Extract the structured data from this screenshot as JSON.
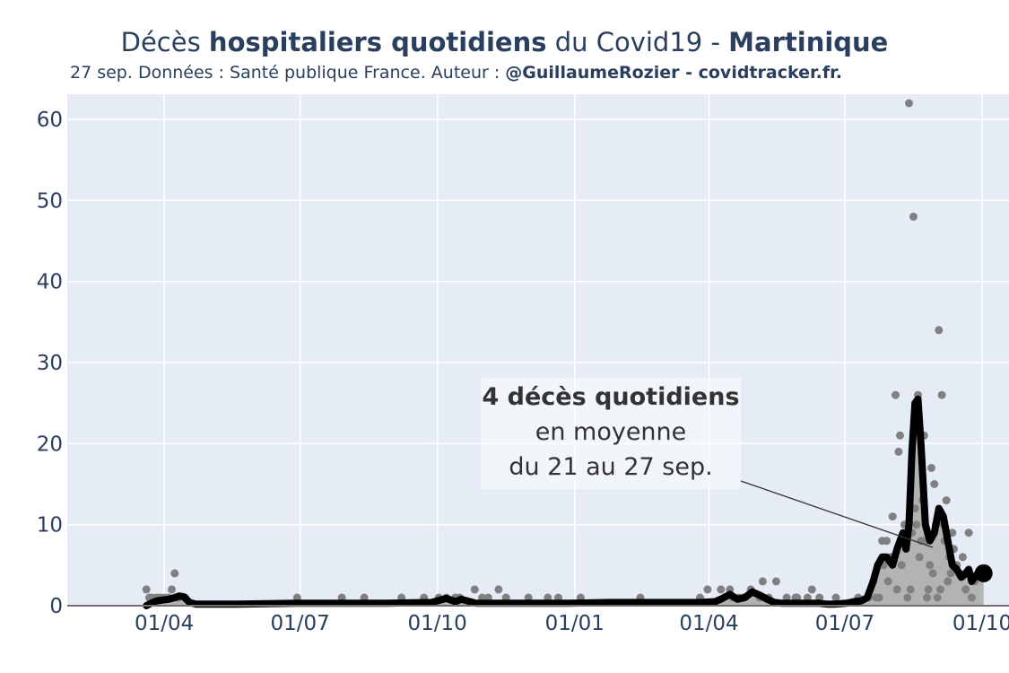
{
  "title": {
    "part1": "Décès ",
    "part2": "hospitaliers quotidiens",
    "part3": " du Covid19 - ",
    "part4": "Martinique"
  },
  "subtitle": {
    "plain": "27 sep. Données : Santé publique France. Auteur : ",
    "bold": "@GuillaumeRozier - covidtracker.fr."
  },
  "annotation": {
    "line1": "4 décès quotidiens",
    "line2": "en moyenne",
    "line3": "du 21 au 27 sep."
  },
  "colors": {
    "plot_bg": "#e5ecf6",
    "grid": "#ffffff",
    "line": "#000000",
    "points": "#808080",
    "fill": "#a9a9a9",
    "axis_text": "#2a3f5f"
  },
  "chart_data": {
    "type": "line",
    "title": "Décès hospitaliers quotidiens du Covid19 - Martinique",
    "x_ticks": [
      "01/04",
      "01/07",
      "01/10",
      "01/01",
      "01/04",
      "01/07",
      "01/10"
    ],
    "y_ticks": [
      0,
      10,
      20,
      30,
      40,
      50,
      60
    ],
    "ylim": [
      0,
      62
    ],
    "x_range_days": [
      -34,
      597
    ],
    "x_note": "days since 2020-03-01",
    "grid": true,
    "series": [
      {
        "kind": "moving_average_7d",
        "x": [
          19,
          22,
          26,
          30,
          34,
          38,
          41,
          44,
          48,
          52,
          60,
          80,
          120,
          150,
          180,
          210,
          220,
          226,
          230,
          240,
          260,
          300,
          330,
          360,
          390,
          400,
          405,
          410,
          415,
          420,
          425,
          430,
          435,
          440,
          445,
          450,
          455,
          460,
          465,
          470,
          475,
          480,
          488,
          493,
          498,
          502,
          506,
          509,
          512,
          515,
          519,
          522,
          524,
          526,
          528,
          530,
          532,
          534,
          536,
          538,
          541,
          544,
          547,
          550,
          553,
          556,
          559,
          562,
          565,
          568,
          570,
          572,
          574,
          576,
          578,
          580
        ],
        "values": [
          0.0,
          0.3,
          0.6,
          0.7,
          0.8,
          1.0,
          1.2,
          1.1,
          0.4,
          0.2,
          0.2,
          0.2,
          0.3,
          0.3,
          0.3,
          0.4,
          0.9,
          0.5,
          0.8,
          0.3,
          0.3,
          0.3,
          0.4,
          0.4,
          0.4,
          0.5,
          0.9,
          1.4,
          0.8,
          1.0,
          1.7,
          1.3,
          0.8,
          0.4,
          0.3,
          0.3,
          0.3,
          0.3,
          0.3,
          0.3,
          0.2,
          0.2,
          0.3,
          0.5,
          0.6,
          1.0,
          3.0,
          5.0,
          6.0,
          6.0,
          5.0,
          7.0,
          8.0,
          9.0,
          7.0,
          10.0,
          19.0,
          25.0,
          25.5,
          20.0,
          10.0,
          8.0,
          9.0,
          12.0,
          11.0,
          8.0,
          5.0,
          4.5,
          3.5,
          4.0,
          4.5,
          3.0,
          3.5,
          4.0,
          4.0,
          4.0
        ]
      },
      {
        "kind": "daily_points",
        "x": [
          19,
          21,
          23,
          26,
          28,
          31,
          34,
          36,
          38,
          40,
          45,
          120,
          150,
          165,
          190,
          205,
          215,
          220,
          226,
          229,
          239,
          244,
          248,
          255,
          260,
          275,
          288,
          295,
          310,
          350,
          390,
          395,
          404,
          410,
          412,
          416,
          419,
          424,
          430,
          432,
          436,
          441,
          448,
          454,
          455,
          462,
          465,
          470,
          481,
          496,
          503,
          506,
          508,
          510,
          512,
          513,
          515,
          516,
          518,
          519,
          521,
          522,
          523,
          524,
          525,
          527,
          528,
          529,
          530,
          531,
          532,
          533,
          534,
          535,
          536,
          537,
          538,
          539,
          540,
          541,
          542,
          543,
          544,
          545,
          546,
          547,
          548,
          549,
          550,
          551,
          552,
          553,
          554,
          555,
          556,
          557,
          558,
          559,
          560,
          562,
          564,
          566,
          568,
          570,
          572,
          574
        ],
        "values": [
          2,
          1,
          1,
          1,
          1,
          1,
          1,
          2,
          4,
          1,
          1,
          1,
          1,
          1,
          1,
          1,
          1,
          1,
          1,
          1,
          2,
          1,
          1,
          2,
          1,
          1,
          1,
          1,
          1,
          1,
          1,
          2,
          2,
          2,
          1,
          1,
          1,
          2,
          1,
          3,
          1,
          3,
          1,
          1,
          1,
          1,
          2,
          1,
          1,
          1,
          1,
          3,
          1,
          1,
          8,
          5,
          8,
          3,
          6,
          11,
          26,
          2,
          19,
          21,
          5,
          10,
          7,
          1,
          62,
          2,
          9,
          48,
          12,
          10,
          26,
          6,
          8,
          13,
          21,
          8,
          1,
          2,
          5,
          17,
          4,
          15,
          10,
          1,
          34,
          2,
          26,
          10,
          8,
          13,
          3,
          6,
          4,
          9,
          7,
          5,
          4,
          6,
          2,
          9,
          1,
          3
        ]
      }
    ]
  }
}
